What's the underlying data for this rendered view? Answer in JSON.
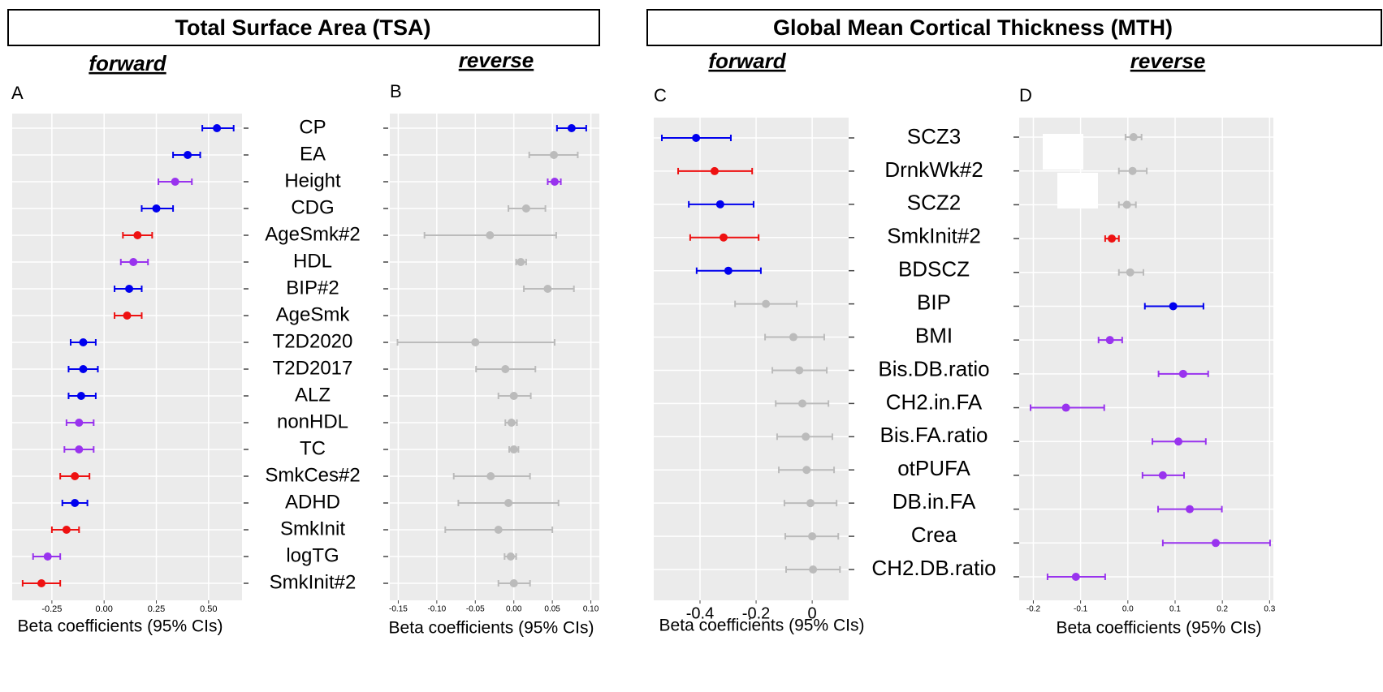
{
  "sections": [
    {
      "title": "Total Surface Area (TSA)"
    },
    {
      "title": "Global Mean Cortical Thickness (MTH)"
    }
  ],
  "chart_data": [
    {
      "type": "forest",
      "label": "A",
      "subtitle": "forward",
      "xlabel": "Beta coefficients (95% CIs)",
      "categories": [
        "CP",
        "EA",
        "Height",
        "CDG",
        "AgeSmk#2",
        "HDL",
        "BIP#2",
        "AgeSmk",
        "T2D2020",
        "T2D2017",
        "ALZ",
        "nonHDL",
        "TC",
        "SmkCes#2",
        "ADHD",
        "SmkInit",
        "logTG",
        "SmkInit#2"
      ],
      "values": [
        0.54,
        0.4,
        0.34,
        0.25,
        0.16,
        0.14,
        0.12,
        0.11,
        -0.1,
        -0.1,
        -0.11,
        -0.12,
        -0.12,
        -0.14,
        -0.14,
        -0.18,
        -0.27,
        -0.3
      ],
      "lower": [
        0.47,
        0.33,
        0.26,
        0.18,
        0.09,
        0.08,
        0.05,
        0.05,
        -0.16,
        -0.17,
        -0.17,
        -0.18,
        -0.19,
        -0.21,
        -0.2,
        -0.25,
        -0.34,
        -0.39
      ],
      "upper": [
        0.62,
        0.46,
        0.42,
        0.33,
        0.23,
        0.21,
        0.18,
        0.18,
        -0.04,
        -0.03,
        -0.04,
        -0.05,
        -0.05,
        -0.07,
        -0.08,
        -0.12,
        -0.21,
        -0.21
      ],
      "colors": [
        "#0000ee",
        "#0000ee",
        "#9933ee",
        "#0000ee",
        "#ee1111",
        "#9933ee",
        "#0000ee",
        "#ee1111",
        "#0000ee",
        "#0000ee",
        "#0000ee",
        "#9933ee",
        "#9933ee",
        "#ee1111",
        "#0000ee",
        "#ee1111",
        "#9933ee",
        "#ee1111"
      ],
      "xlim": [
        -0.44,
        0.66
      ],
      "xticks": [
        -0.25,
        {
          "value": 0,
          "label": "0.00"
        },
        0.25,
        {
          "value": 0.5,
          "label": "0.50"
        }
      ]
    },
    {
      "type": "forest",
      "label": "B",
      "subtitle": "reverse",
      "xlabel": "Beta coefficients (95% CIs)",
      "values": [
        0.075,
        0.052,
        0.053,
        0.016,
        -0.031,
        0.009,
        0.044,
        null,
        -0.05,
        -0.011,
        0.0,
        -0.003,
        0.0,
        -0.03,
        -0.007,
        -0.02,
        -0.004,
        0.0
      ],
      "lower": [
        0.056,
        0.02,
        0.044,
        -0.007,
        -0.116,
        0.003,
        0.013,
        null,
        -0.151,
        -0.049,
        -0.02,
        -0.011,
        -0.006,
        -0.078,
        -0.072,
        -0.089,
        -0.012,
        -0.02
      ],
      "upper": [
        0.094,
        0.083,
        0.061,
        0.041,
        0.055,
        0.016,
        0.078,
        null,
        0.053,
        0.028,
        0.022,
        0.004,
        0.006,
        0.021,
        0.058,
        0.05,
        0.003,
        0.021
      ],
      "colors": [
        "#0000ee",
        "#bbbbbb",
        "#9933ee",
        "#bbbbbb",
        "#bbbbbb",
        "#bbbbbb",
        "#bbbbbb",
        "#bbbbbb",
        "#bbbbbb",
        "#bbbbbb",
        "#bbbbbb",
        "#bbbbbb",
        "#bbbbbb",
        "#bbbbbb",
        "#bbbbbb",
        "#bbbbbb",
        "#bbbbbb",
        "#bbbbbb"
      ],
      "xlim": [
        -0.161,
        0.111
      ],
      "xticks": [
        -0.15,
        {
          "value": -0.1,
          "label": "-0.10"
        },
        -0.05,
        {
          "value": 0,
          "label": "0.00"
        },
        0.05,
        {
          "value": 0.1,
          "label": "0.10"
        }
      ]
    },
    {
      "type": "forest",
      "label": "C",
      "subtitle": "forward",
      "xlabel": "Beta coefficients (95% CIs)",
      "categories": [
        "SCZ3",
        "DrnkWk#2",
        "SCZ2",
        "SmkInit#2",
        "BDSCZ",
        "BIP",
        "BMI",
        "Bis.DB.ratio",
        "CH2.in.FA",
        "Bis.FA.ratio",
        "otPUFA",
        "DB.in.FA",
        "Crea",
        "CH2.DB.ratio"
      ],
      "values": [
        -0.414,
        -0.348,
        -0.328,
        -0.316,
        -0.299,
        -0.165,
        -0.067,
        -0.046,
        -0.035,
        -0.023,
        -0.02,
        -0.006,
        0.0,
        0.003
      ],
      "lower": [
        -0.536,
        -0.478,
        -0.44,
        -0.435,
        -0.412,
        -0.275,
        -0.168,
        -0.142,
        -0.13,
        -0.125,
        -0.119,
        -0.099,
        -0.096,
        -0.093
      ],
      "upper": [
        -0.29,
        -0.214,
        -0.209,
        -0.191,
        -0.183,
        -0.055,
        0.043,
        0.052,
        0.058,
        0.072,
        0.078,
        0.087,
        0.093,
        0.099
      ],
      "colors": [
        "#0000ee",
        "#ee1111",
        "#0000ee",
        "#ee1111",
        "#0000ee",
        "#bbbbbb",
        "#bbbbbb",
        "#bbbbbb",
        "#bbbbbb",
        "#bbbbbb",
        "#bbbbbb",
        "#bbbbbb",
        "#bbbbbb",
        "#bbbbbb"
      ],
      "xlim": [
        -0.565,
        0.13
      ],
      "xticks": [
        -0.4,
        -0.2,
        0
      ]
    },
    {
      "type": "forest",
      "label": "D",
      "subtitle": "reverse",
      "xlabel": "Beta coefficients (95% CIs)",
      "values": [
        0.012,
        0.01,
        -0.002,
        -0.034,
        0.005,
        0.096,
        -0.038,
        0.117,
        -0.131,
        0.107,
        0.074,
        0.131,
        0.186,
        -0.11
      ],
      "lower": [
        -0.005,
        -0.019,
        -0.019,
        -0.048,
        -0.019,
        0.036,
        -0.062,
        0.065,
        -0.206,
        0.052,
        0.031,
        0.064,
        0.074,
        -0.17
      ],
      "upper": [
        0.029,
        0.04,
        0.017,
        -0.019,
        0.033,
        0.16,
        -0.012,
        0.17,
        -0.05,
        0.165,
        0.119,
        0.199,
        0.301,
        -0.048
      ],
      "colors": [
        "#bbbbbb",
        "#bbbbbb",
        "#bbbbbb",
        "#ee1111",
        "#bbbbbb",
        "#0000ee",
        "#9933ee",
        "#9933ee",
        "#9933ee",
        "#9933ee",
        "#9933ee",
        "#9933ee",
        "#9933ee",
        "#9933ee"
      ],
      "xlim": [
        -0.23,
        0.308
      ],
      "xticks": [
        -0.2,
        -0.1,
        {
          "value": 0,
          "label": "0.0"
        },
        0.1,
        0.2,
        0.3
      ]
    }
  ]
}
